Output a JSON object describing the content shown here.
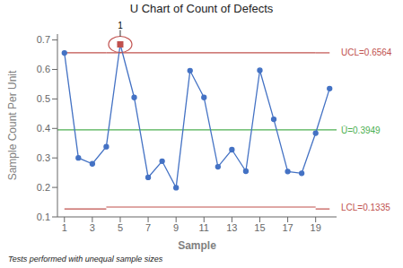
{
  "chart_data": {
    "type": "line",
    "title": "U Chart of Count of Defects",
    "xlabel": "Sample",
    "ylabel": "Sample Count Per Unit",
    "footnote": "Tests performed with unequal sample sizes",
    "x": [
      1,
      2,
      3,
      4,
      5,
      6,
      7,
      8,
      9,
      10,
      11,
      12,
      13,
      14,
      15,
      16,
      17,
      18,
      19,
      20
    ],
    "values": [
      0.656,
      0.3,
      0.28,
      0.338,
      0.685,
      0.505,
      0.234,
      0.289,
      0.199,
      0.596,
      0.505,
      0.27,
      0.328,
      0.255,
      0.597,
      0.431,
      0.254,
      0.248,
      0.384,
      0.535
    ],
    "color": "#4472C4",
    "marker": "circle",
    "xlim": [
      0.5,
      20.5
    ],
    "xticks": [
      1,
      3,
      5,
      7,
      9,
      11,
      13,
      15,
      17,
      19
    ],
    "ylim": [
      0.1,
      0.72
    ],
    "yticks": [
      0.1,
      0.2,
      0.3,
      0.4,
      0.5,
      0.6,
      0.7
    ],
    "grid": false,
    "control_limits": [
      {
        "label": "UCL=0.6564",
        "value": 0.6564,
        "color": "#C0504D",
        "segments": [
          {
            "x": [
              1,
              4
            ],
            "y": [
              0.6564,
              0.6564
            ]
          },
          {
            "x": [
              4,
              19
            ],
            "y": [
              0.6564,
              0.6564
            ]
          },
          {
            "x": [
              19,
              20
            ],
            "y": [
              0.6564,
              0.6564
            ]
          }
        ]
      },
      {
        "label": "LCL=0.1335",
        "value": 0.1335,
        "color": "#C0504D",
        "segments": [
          {
            "x": [
              1,
              4
            ],
            "y": [
              0.127,
              0.127
            ]
          },
          {
            "x": [
              4,
              19
            ],
            "y": [
              0.1335,
              0.1335
            ]
          },
          {
            "x": [
              19,
              20
            ],
            "y": [
              0.127,
              0.127
            ]
          }
        ]
      }
    ],
    "mean": {
      "label": "Ū=0.3949",
      "value": 0.3949,
      "color": "#4CAF50"
    },
    "out_of_control": {
      "x": 5,
      "y": 0.685,
      "label": "1",
      "color": "#C0504D"
    }
  }
}
